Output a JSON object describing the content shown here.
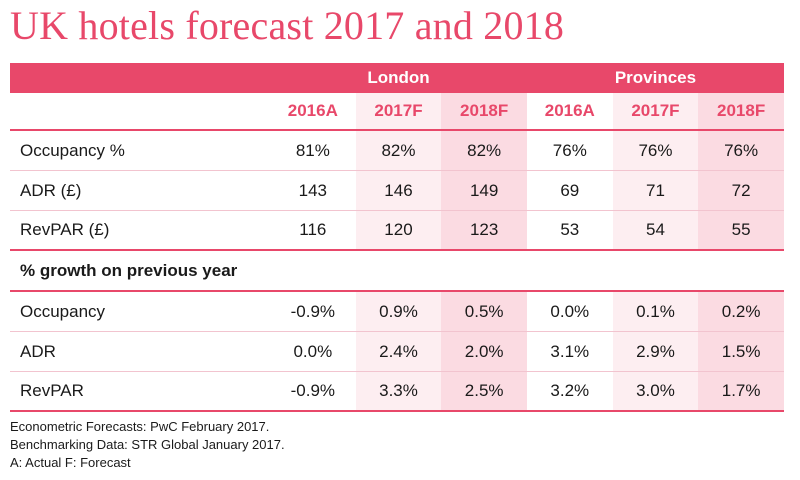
{
  "title": "UK hotels forecast 2017 and 2018",
  "groups": [
    "London",
    "Provinces"
  ],
  "years": [
    "2016A",
    "2017F",
    "2018F",
    "2016A",
    "2017F",
    "2018F"
  ],
  "rows": [
    {
      "label": "Occupancy %",
      "values": [
        "81%",
        "82%",
        "82%",
        "76%",
        "76%",
        "76%"
      ]
    },
    {
      "label": "ADR (£)",
      "values": [
        "143",
        "146",
        "149",
        "69",
        "71",
        "72"
      ]
    },
    {
      "label": "RevPAR (£)",
      "values": [
        "116",
        "120",
        "123",
        "53",
        "54",
        "55"
      ]
    }
  ],
  "section_label": "% growth on previous year",
  "growth_rows": [
    {
      "label": "Occupancy",
      "values": [
        "-0.9%",
        "0.9%",
        "0.5%",
        "0.0%",
        "0.1%",
        "0.2%"
      ]
    },
    {
      "label": "ADR",
      "values": [
        "0.0%",
        "2.4%",
        "2.0%",
        "3.1%",
        "2.9%",
        "1.5%"
      ]
    },
    {
      "label": "RevPAR",
      "values": [
        "-0.9%",
        "3.3%",
        "2.5%",
        "3.2%",
        "3.0%",
        "1.7%"
      ]
    }
  ],
  "notes": [
    "Econometric Forecasts: PwC February 2017.",
    "Benchmarking Data: STR Global January 2017.",
    "A: Actual F: Forecast"
  ],
  "colors": {
    "accent": "#e8486a",
    "col2017": "#fdeef1",
    "col2018": "#fbdbe2"
  },
  "chart_data": {
    "type": "table",
    "title": "UK hotels forecast 2017 and 2018",
    "column_groups": [
      "London",
      "Provinces"
    ],
    "columns": [
      "2016A",
      "2017F",
      "2018F",
      "2016A",
      "2017F",
      "2018F"
    ],
    "rows": [
      {
        "label": "Occupancy %",
        "values": [
          81,
          82,
          82,
          76,
          76,
          76
        ]
      },
      {
        "label": "ADR (£)",
        "values": [
          143,
          146,
          149,
          69,
          71,
          72
        ]
      },
      {
        "label": "RevPAR (£)",
        "values": [
          116,
          120,
          123,
          53,
          54,
          55
        ]
      },
      {
        "label": "Occupancy",
        "values": [
          -0.9,
          0.9,
          0.5,
          0.0,
          0.1,
          0.2
        ]
      },
      {
        "label": "ADR",
        "values": [
          0.0,
          2.4,
          2.0,
          3.1,
          2.9,
          1.5
        ]
      },
      {
        "label": "RevPAR",
        "values": [
          -0.9,
          3.3,
          2.5,
          3.2,
          3.0,
          1.7
        ]
      }
    ]
  }
}
